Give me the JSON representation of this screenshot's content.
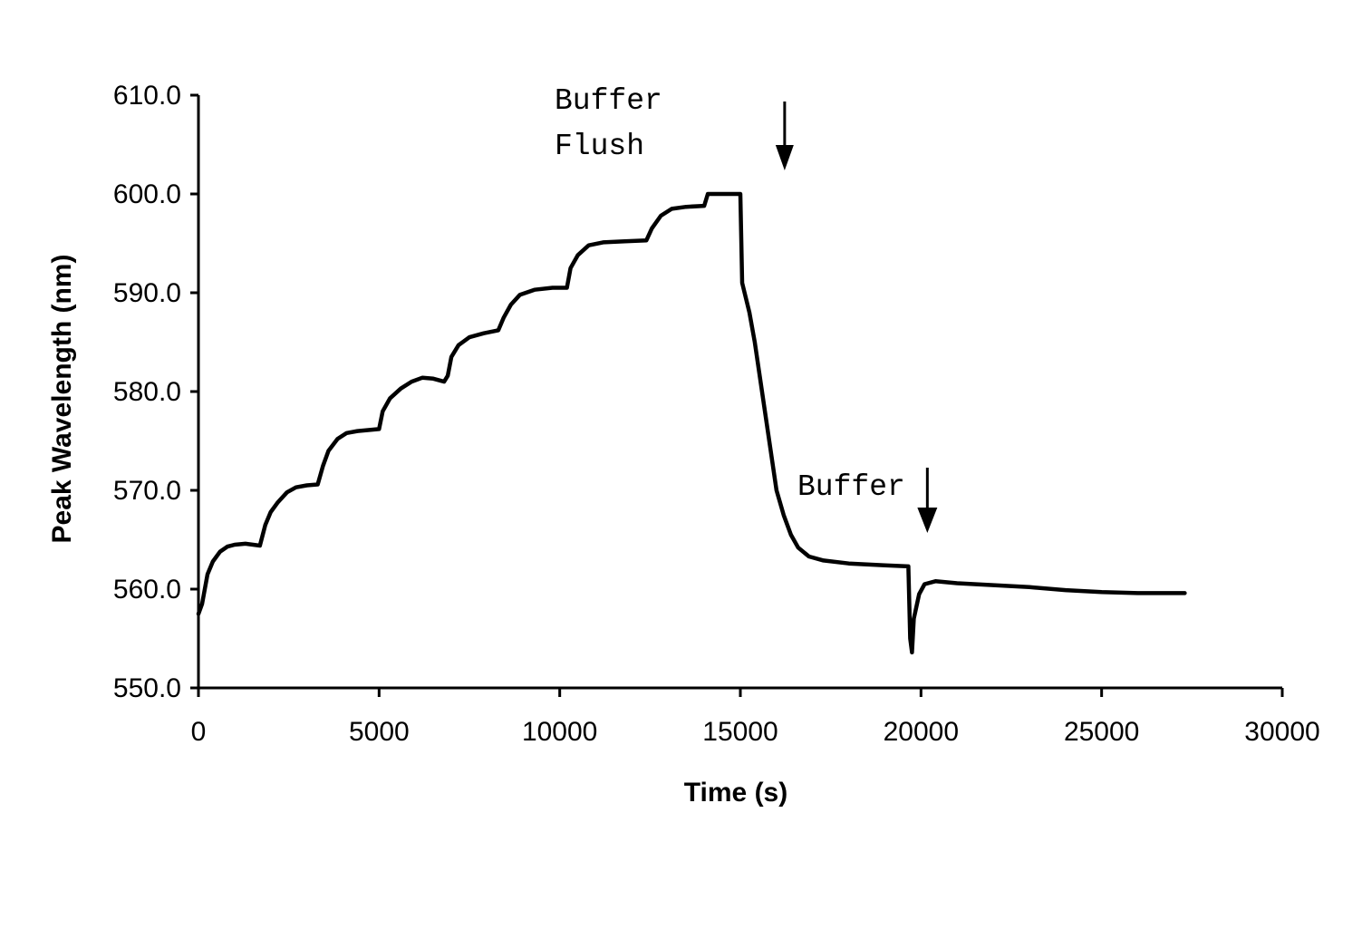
{
  "chart_data": {
    "type": "line",
    "title": "",
    "xlabel": "Time (s)",
    "ylabel": "Peak Wavelength (nm)",
    "xlim": [
      0,
      30000
    ],
    "ylim": [
      550,
      610
    ],
    "x_ticks": [
      0,
      5000,
      10000,
      15000,
      20000,
      25000,
      30000
    ],
    "x_tick_labels": [
      "0",
      "5000",
      "10000",
      "15000",
      "20000",
      "25000",
      "30000"
    ],
    "y_ticks": [
      550,
      560,
      570,
      580,
      590,
      600,
      610
    ],
    "y_tick_labels": [
      "550.0",
      "560.0",
      "570.0",
      "580.0",
      "590.0",
      "600.0",
      "610.0"
    ],
    "grid": false,
    "legend": "none",
    "annotations": [
      {
        "lines": [
          "Buffer",
          "Flush"
        ],
        "arrow_x": 16000
      },
      {
        "lines": [
          "Buffer"
        ],
        "arrow_x": 19900
      }
    ],
    "series": [
      {
        "points": [
          [
            0,
            557.5
          ],
          [
            100,
            558.5
          ],
          [
            250,
            561.5
          ],
          [
            400,
            562.8
          ],
          [
            600,
            563.8
          ],
          [
            800,
            564.3
          ],
          [
            1000,
            564.5
          ],
          [
            1300,
            564.6
          ],
          [
            1700,
            564.4
          ],
          [
            1850,
            566.5
          ],
          [
            2000,
            567.8
          ],
          [
            2200,
            568.8
          ],
          [
            2450,
            569.8
          ],
          [
            2700,
            570.3
          ],
          [
            3000,
            570.5
          ],
          [
            3300,
            570.6
          ],
          [
            3450,
            572.5
          ],
          [
            3600,
            574.0
          ],
          [
            3850,
            575.2
          ],
          [
            4100,
            575.8
          ],
          [
            4400,
            576.0
          ],
          [
            4700,
            576.1
          ],
          [
            5000,
            576.2
          ],
          [
            5100,
            578.0
          ],
          [
            5300,
            579.3
          ],
          [
            5600,
            580.3
          ],
          [
            5900,
            581.0
          ],
          [
            6200,
            581.4
          ],
          [
            6500,
            581.3
          ],
          [
            6800,
            581.0
          ],
          [
            6900,
            581.6
          ],
          [
            7000,
            583.5
          ],
          [
            7200,
            584.7
          ],
          [
            7500,
            585.5
          ],
          [
            7900,
            585.9
          ],
          [
            8300,
            586.2
          ],
          [
            8450,
            587.5
          ],
          [
            8650,
            588.8
          ],
          [
            8900,
            589.8
          ],
          [
            9300,
            590.3
          ],
          [
            9800,
            590.5
          ],
          [
            10200,
            590.5
          ],
          [
            10300,
            592.5
          ],
          [
            10500,
            593.8
          ],
          [
            10800,
            594.8
          ],
          [
            11200,
            595.1
          ],
          [
            11800,
            595.2
          ],
          [
            12400,
            595.3
          ],
          [
            12550,
            596.5
          ],
          [
            12800,
            597.8
          ],
          [
            13100,
            598.5
          ],
          [
            13500,
            598.7
          ],
          [
            14000,
            598.8
          ],
          [
            14100,
            600.0
          ],
          [
            15000,
            600.0
          ],
          [
            15050,
            591.0
          ],
          [
            15250,
            588.0
          ],
          [
            15400,
            585.0
          ],
          [
            15600,
            580.0
          ],
          [
            15800,
            575.0
          ],
          [
            16000,
            570.0
          ],
          [
            16200,
            567.5
          ],
          [
            16400,
            565.5
          ],
          [
            16600,
            564.2
          ],
          [
            16900,
            563.3
          ],
          [
            17300,
            562.9
          ],
          [
            18000,
            562.6
          ],
          [
            19000,
            562.4
          ],
          [
            19650,
            562.3
          ],
          [
            19700,
            555.0
          ],
          [
            19750,
            553.6
          ],
          [
            19800,
            557.0
          ],
          [
            19950,
            559.5
          ],
          [
            20100,
            560.5
          ],
          [
            20400,
            560.8
          ],
          [
            21000,
            560.6
          ],
          [
            22000,
            560.4
          ],
          [
            23000,
            560.2
          ],
          [
            24000,
            559.9
          ],
          [
            25000,
            559.7
          ],
          [
            26000,
            559.6
          ],
          [
            27300,
            559.6
          ]
        ]
      }
    ]
  }
}
